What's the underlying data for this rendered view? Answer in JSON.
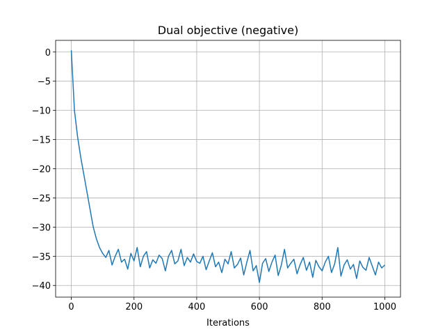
{
  "chart_data": {
    "type": "line",
    "title": "Dual objective (negative)",
    "xlabel": "Iterations",
    "color": "#1f77b4",
    "grid": true,
    "xlim": [
      -50,
      1050
    ],
    "ylim": [
      -42,
      2
    ],
    "xticks": [
      0,
      200,
      400,
      600,
      800,
      1000
    ],
    "yticks": [
      0,
      {
        "value": -5,
        "label": "−5"
      },
      {
        "value": -10,
        "label": "−10"
      },
      {
        "value": -15,
        "label": "−15"
      },
      {
        "value": -20,
        "label": "−20"
      },
      {
        "value": -25,
        "label": "−25"
      },
      {
        "value": -30,
        "label": "−30"
      },
      {
        "value": -35,
        "label": "−35"
      },
      {
        "value": -40,
        "label": "−40"
      }
    ],
    "x": [
      0,
      10,
      20,
      30,
      40,
      50,
      60,
      70,
      80,
      90,
      100,
      110,
      120,
      130,
      140,
      150,
      160,
      170,
      180,
      190,
      200,
      210,
      220,
      230,
      240,
      250,
      260,
      270,
      280,
      290,
      300,
      310,
      320,
      330,
      340,
      350,
      360,
      370,
      380,
      390,
      400,
      410,
      420,
      430,
      440,
      450,
      460,
      470,
      480,
      490,
      500,
      510,
      520,
      530,
      540,
      550,
      560,
      570,
      580,
      590,
      600,
      610,
      620,
      630,
      640,
      650,
      660,
      670,
      680,
      690,
      700,
      710,
      720,
      730,
      740,
      750,
      760,
      770,
      780,
      790,
      800,
      810,
      820,
      830,
      840,
      850,
      860,
      870,
      880,
      890,
      900,
      910,
      920,
      930,
      940,
      950,
      960,
      970,
      980,
      990,
      1000
    ],
    "values": [
      0.3,
      -10,
      -14.5,
      -18,
      -21,
      -24,
      -27,
      -30,
      -32,
      -33.5,
      -34.5,
      -35.2,
      -34,
      -36.5,
      -35,
      -33.8,
      -36,
      -35.5,
      -37.2,
      -34.5,
      -35.8,
      -33.5,
      -36.8,
      -35,
      -34.2,
      -37,
      -35.6,
      -36.2,
      -34.8,
      -35.4,
      -37.5,
      -35,
      -34,
      -36.3,
      -35.8,
      -33.8,
      -36.6,
      -35.2,
      -36,
      -34.6,
      -35.9,
      -36.2,
      -35,
      -37.3,
      -35.8,
      -34.4,
      -36.8,
      -36,
      -37.8,
      -35.5,
      -36.3,
      -34.2,
      -37,
      -36.4,
      -35.3,
      -38.2,
      -36,
      -34,
      -37.5,
      -36.6,
      -39.5,
      -36.2,
      -35.4,
      -37.6,
      -36,
      -34.8,
      -38.3,
      -36.5,
      -33.8,
      -37,
      -36.2,
      -35.5,
      -38,
      -36.4,
      -35.2,
      -37.4,
      -36,
      -38.6,
      -35.7,
      -36.8,
      -37.5,
      -36,
      -35,
      -37.8,
      -36.3,
      -33.5,
      -38.4,
      -36.5,
      -35.6,
      -37.2,
      -36.4,
      -38.8,
      -35.8,
      -36.9,
      -37.4,
      -35.2,
      -36.7,
      -38.2,
      -36,
      -37,
      -36.5
    ]
  }
}
